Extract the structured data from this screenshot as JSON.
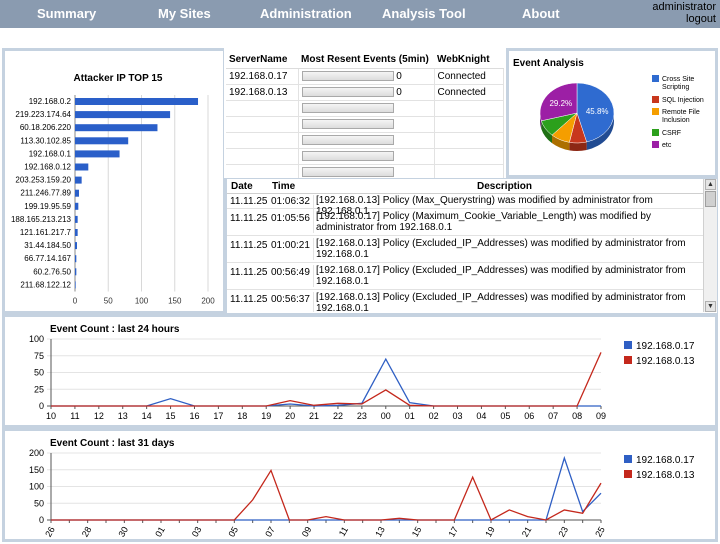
{
  "nav": {
    "items": [
      "Summary",
      "My Sites",
      "Administration",
      "Analysis Tool",
      "About"
    ],
    "user": "administrator",
    "logout": "logout"
  },
  "attackers": {
    "title": "Attacker IP TOP 15",
    "chart_data": {
      "type": "bar",
      "orientation": "horizontal",
      "title": "Attacker IP TOP 15",
      "categories": [
        "192.168.0.2",
        "219.223.174.64",
        "60.18.206.220",
        "113.30.102.85",
        "192.168.0.1",
        "192.168.0.12",
        "203.253.159.20",
        "211.246.77.89",
        "199.19.95.59",
        "188.165.213.213",
        "121.161.217.7",
        "31.44.184.50",
        "66.77.14.167",
        "60.2.76.50",
        "211.68.122.12"
      ],
      "values": [
        185,
        143,
        124,
        80,
        67,
        20,
        10,
        6,
        5,
        4,
        4,
        3,
        2,
        2,
        1
      ],
      "xlim": [
        0,
        200
      ],
      "xticks": [
        "0",
        "50",
        "100",
        "150",
        "200"
      ],
      "grid": true,
      "color": "#2a5fc9"
    }
  },
  "servers": {
    "headers": [
      "ServerName",
      "Most Resent Events (5min)",
      "WebKnight"
    ],
    "rows": [
      {
        "name": "192.168.0.17",
        "events": "0",
        "status": "Connected"
      },
      {
        "name": "192.168.0.13",
        "events": "0",
        "status": "Connected"
      }
    ]
  },
  "analysis": {
    "title": "Event Analysis",
    "chart_data": {
      "type": "pie",
      "title": "Event Analysis",
      "legend_position": "right",
      "slices": [
        {
          "label": "Cross Site Scripting",
          "value": 45.8,
          "color": "#2f6bd0",
          "show": "45.8%"
        },
        {
          "label": "SQL Injection",
          "value": 7.5,
          "color": "#c8371d",
          "show": ""
        },
        {
          "label": "Remote File Inclusion",
          "value": 8.5,
          "color": "#f59e00",
          "show": ""
        },
        {
          "label": "CSRF",
          "value": 9.0,
          "color": "#2ca01c",
          "show": ""
        },
        {
          "label": "etc",
          "value": 29.2,
          "color": "#9c1fa5",
          "show": "29.2%"
        }
      ]
    }
  },
  "events": {
    "headers": [
      "Date",
      "Time",
      "Description"
    ],
    "rows": [
      {
        "date": "11.11.25",
        "time": "01:06:32",
        "desc": "[192.168.0.13] Policy (Max_Querystring) was modified by administrator from 192.168.0.1"
      },
      {
        "date": "11.11.25",
        "time": "01:05:56",
        "desc": "[192.168.0.17] Policy (Maximum_Cookie_Variable_Length) was modified by administrator from 192.168.0.1"
      },
      {
        "date": "11.11.25",
        "time": "01:00:21",
        "desc": "[192.168.0.13] Policy (Excluded_IP_Addresses) was modified by administrator from 192.168.0.1"
      },
      {
        "date": "11.11.25",
        "time": "00:56:49",
        "desc": "[192.168.0.17] Policy (Excluded_IP_Addresses) was modified by administrator from 192.168.0.1"
      },
      {
        "date": "11.11.25",
        "time": "00:56:37",
        "desc": "[192.168.0.13] Policy (Excluded_IP_Addresses) was modified by administrator from 192.168.0.1"
      }
    ]
  },
  "hourly": {
    "title": "Event Count : last 24 hours",
    "chart_data": {
      "type": "line",
      "title": "Event Count : last 24 hours",
      "categories": [
        "10",
        "11",
        "12",
        "13",
        "14",
        "15",
        "16",
        "17",
        "18",
        "19",
        "20",
        "21",
        "22",
        "23",
        "00",
        "01",
        "02",
        "03",
        "04",
        "05",
        "06",
        "07",
        "08",
        "09"
      ],
      "ylim": [
        0,
        100
      ],
      "yticks": [
        0,
        25,
        50,
        75,
        100
      ],
      "legend_position": "right",
      "series": [
        {
          "name": "192.168.0.17",
          "color": "#2f5fc4",
          "values": [
            0,
            0,
            0,
            0,
            0,
            11,
            0,
            0,
            0,
            0,
            3,
            0,
            1,
            4,
            70,
            5,
            0,
            0,
            0,
            0,
            0,
            0,
            0,
            0
          ]
        },
        {
          "name": "192.168.0.13",
          "color": "#c4281c",
          "values": [
            0,
            0,
            0,
            0,
            0,
            0,
            0,
            0,
            0,
            0,
            8,
            1,
            4,
            3,
            24,
            1,
            0,
            0,
            0,
            0,
            0,
            0,
            0,
            80
          ]
        }
      ]
    }
  },
  "daily": {
    "title": "Event Count : last 31 days",
    "chart_data": {
      "type": "line",
      "title": "Event Count : last 31 days",
      "categories": [
        "26",
        "27",
        "28",
        "29",
        "30",
        "31",
        "01",
        "02",
        "03",
        "04",
        "05",
        "06",
        "07",
        "08",
        "09",
        "10",
        "11",
        "12",
        "13",
        "14",
        "15",
        "16",
        "17",
        "18",
        "19",
        "20",
        "21",
        "22",
        "23",
        "24",
        "25"
      ],
      "tick_labels": [
        "26",
        "28",
        "30",
        "01",
        "03",
        "05",
        "07",
        "09",
        "11",
        "13",
        "15",
        "17",
        "19",
        "21",
        "23",
        "25"
      ],
      "ylim": [
        0,
        200
      ],
      "yticks": [
        0,
        50,
        100,
        150,
        200
      ],
      "legend_position": "right",
      "series": [
        {
          "name": "192.168.0.17",
          "color": "#2f5fc4",
          "values": [
            0,
            0,
            0,
            0,
            0,
            0,
            0,
            0,
            0,
            0,
            0,
            0,
            0,
            0,
            0,
            0,
            0,
            0,
            0,
            0,
            0,
            0,
            0,
            0,
            0,
            0,
            0,
            0,
            185,
            25,
            80
          ]
        },
        {
          "name": "192.168.0.13",
          "color": "#c4281c",
          "values": [
            0,
            0,
            0,
            0,
            0,
            0,
            0,
            0,
            0,
            0,
            0,
            60,
            148,
            0,
            0,
            10,
            0,
            0,
            0,
            5,
            0,
            0,
            0,
            128,
            0,
            30,
            10,
            0,
            30,
            20,
            110
          ]
        }
      ]
    }
  }
}
